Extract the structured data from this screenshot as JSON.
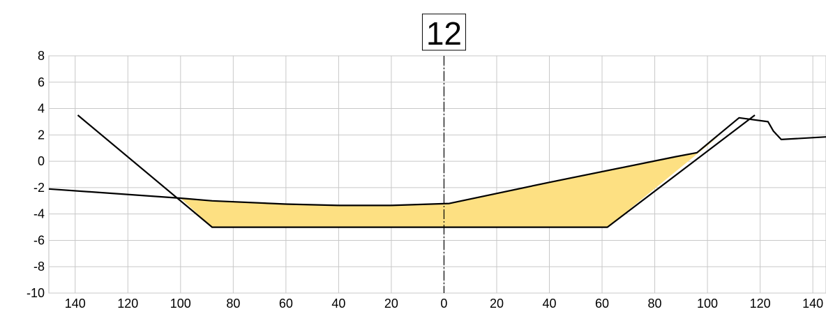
{
  "chart_data": {
    "type": "area",
    "title": "12",
    "xlabel": "",
    "ylabel": "",
    "xlim": [
      -150,
      145
    ],
    "ylim": [
      -10,
      8
    ],
    "grid": true,
    "x_ticks": [
      -140,
      -120,
      -100,
      -80,
      -60,
      -40,
      -20,
      0,
      20,
      40,
      60,
      80,
      100,
      120,
      140
    ],
    "x_tick_labels": [
      "140",
      "120",
      "100",
      "80",
      "60",
      "40",
      "20",
      "0",
      "20",
      "40",
      "60",
      "80",
      "100",
      "120",
      "140"
    ],
    "y_ticks": [
      8,
      6,
      4,
      2,
      0,
      -2,
      -4,
      -6,
      -8,
      -10
    ],
    "y_tick_labels": [
      "8",
      "6",
      "4",
      "2",
      "0",
      "-2",
      "-4",
      "-6",
      "-8",
      "-10"
    ],
    "centerline_x": 0,
    "fill_color": "#fde082",
    "line_color": "#000000",
    "ground_profile": [
      [
        -150,
        -2.1
      ],
      [
        -100,
        -2.8
      ],
      [
        -88,
        -3.0
      ],
      [
        -60,
        -3.25
      ],
      [
        -40,
        -3.35
      ],
      [
        -20,
        -3.35
      ],
      [
        2,
        -3.2
      ],
      [
        40,
        -1.6
      ],
      [
        88,
        0.35
      ],
      [
        96,
        0.65
      ],
      [
        112,
        3.3
      ],
      [
        123,
        3.0
      ],
      [
        125,
        2.3
      ],
      [
        128,
        1.65
      ],
      [
        145,
        1.85
      ]
    ],
    "design_section": [
      [
        -139,
        3.5
      ],
      [
        -88,
        -5.0
      ],
      [
        62,
        -5.0
      ],
      [
        118,
        3.5
      ]
    ],
    "fill_region": [
      [
        -100,
        -2.8
      ],
      [
        -88,
        -3.0
      ],
      [
        -60,
        -3.25
      ],
      [
        -40,
        -3.35
      ],
      [
        -20,
        -3.35
      ],
      [
        2,
        -3.2
      ],
      [
        40,
        -1.6
      ],
      [
        88,
        0.35
      ],
      [
        96,
        0.65
      ],
      [
        105,
        2.0
      ],
      [
        62,
        -5.0
      ],
      [
        -88,
        -5.0
      ]
    ]
  }
}
